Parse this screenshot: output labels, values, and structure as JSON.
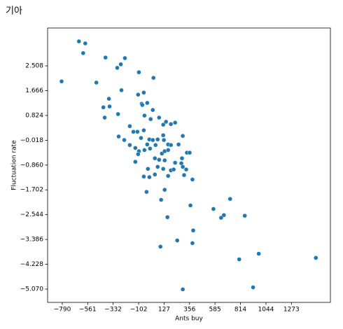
{
  "chart_data": {
    "type": "scatter",
    "title": "기아",
    "xlabel": "Ants buy",
    "ylabel": "Fluctuation rate",
    "color": "#1f77b4",
    "xlim": [
      -922,
      1624
    ],
    "ylim": [
      -5.522,
      3.793
    ],
    "xticks": [
      {
        "value": -790,
        "label": "−790"
      },
      {
        "value": -561,
        "label": "−561"
      },
      {
        "value": -332,
        "label": "−332"
      },
      {
        "value": -102,
        "label": "−102"
      },
      127,
      356,
      585,
      814,
      1044,
      1273
    ],
    "yticks": [
      2.508,
      1.666,
      0.824,
      {
        "value": -0.018,
        "label": "−0.018"
      },
      {
        "value": -0.86,
        "label": "−0.860"
      },
      {
        "value": -1.702,
        "label": "−1.702"
      },
      {
        "value": -2.544,
        "label": "−2.544"
      },
      {
        "value": -3.386,
        "label": "−3.386"
      },
      {
        "value": -4.228,
        "label": "−4.228"
      },
      {
        "value": -5.07,
        "label": "−5.070"
      }
    ],
    "x": [
      -640,
      -602,
      -583,
      -401,
      -226,
      -295,
      -263,
      -796,
      -483,
      -257,
      -370,
      -420,
      -364,
      -408,
      -288,
      -100,
      31,
      -56,
      -107,
      -75,
      -69,
      -25,
      25,
      -50,
      82,
      6,
      144,
      188,
      226,
      119,
      -182,
      -150,
      -113,
      -56,
      -282,
      -232,
      -81,
      -6,
      25,
      69,
      119,
      125,
      295,
      -182,
      -132,
      -25,
      50,
      163,
      188,
      257,
      -100,
      -50,
      0,
      107,
      132,
      163,
      332,
      357,
      -107,
      44,
      82,
      132,
      288,
      -132,
      226,
      -19,
      69,
      119,
      188,
      282,
      295,
      44,
      -56,
      163,
      307,
      -6,
      213,
      326,
      382,
      132,
      -31,
      100,
      157,
      364,
      571,
      721,
      665,
      640,
      853,
      389,
      245,
      382,
      94,
      803,
      979,
      1493,
      928,
      295
    ],
    "values": [
      3.34,
      2.94,
      3.27,
      2.79,
      2.77,
      2.44,
      2.56,
      1.98,
      1.94,
      1.68,
      1.39,
      1.1,
      1.13,
      0.75,
      0.87,
      2.29,
      2.1,
      1.6,
      1.53,
      1.22,
      1.18,
      1.25,
      1.01,
      0.82,
      0.75,
      0.7,
      0.61,
      0.53,
      0.58,
      0.51,
      0.46,
      0.27,
      0.27,
      0.32,
      0.11,
      -0.01,
      0.06,
      0.01,
      -0.01,
      0.01,
      0.15,
      -0.01,
      0.13,
      -0.18,
      -0.28,
      -0.16,
      -0.18,
      -0.16,
      -0.18,
      -0.16,
      -0.39,
      -0.35,
      -0.3,
      -0.47,
      -0.39,
      -0.35,
      -0.44,
      -0.44,
      -0.49,
      -0.63,
      -0.68,
      -0.7,
      -0.63,
      -0.75,
      -0.78,
      -0.99,
      -0.92,
      -0.99,
      -1.04,
      -0.8,
      -0.92,
      -1.18,
      -1.25,
      -1.23,
      -1.2,
      -1.27,
      -1.01,
      -1.01,
      -1.35,
      -1.7,
      -1.77,
      -2.04,
      -2.63,
      -2.23,
      -2.35,
      -2.01,
      -2.56,
      -2.65,
      -2.58,
      -3.08,
      -3.42,
      -3.51,
      -3.63,
      -4.06,
      -3.87,
      -4.01,
      -5.01,
      -5.08
    ]
  }
}
